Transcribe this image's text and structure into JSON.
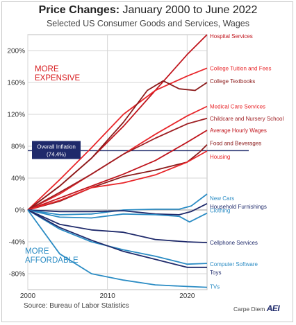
{
  "title_main": "Price Changes:",
  "title_rest": "January 2000 to June 2022",
  "subtitle": "Selected US Consumer Goods and Services, Wages",
  "source": "Source: Bureau of Labor Statistics",
  "brand_text": "Carpe Diem",
  "brand_logo": "AEI",
  "chart_data": {
    "type": "line",
    "title": "Price Changes: January 2000 to June 2022",
    "subtitle": "Selected US Consumer Goods and Services, Wages",
    "xlabel": "",
    "ylabel": "",
    "xlim": [
      2000,
      2022.5
    ],
    "ylim": [
      -100,
      220
    ],
    "yticks": [
      -80,
      -40,
      0,
      40,
      80,
      120,
      160,
      200
    ],
    "ytick_labels": [
      "-80%",
      "-40%",
      "0%",
      "40%",
      "80%",
      "120%",
      "160%",
      "200%"
    ],
    "xticks": [
      2000,
      2010,
      2020
    ],
    "xtick_labels": [
      "2000",
      "2010",
      "2020"
    ],
    "grid": true,
    "overall_inflation": {
      "value": 74.4,
      "label": "Overall Inflation",
      "sublabel": "(74.4%)"
    },
    "region_labels": [
      {
        "lines": [
          "MORE",
          "EXPENSIVE"
        ],
        "color": "#d7191c"
      },
      {
        "lines": [
          "MORE",
          "AFFORDABLE"
        ],
        "color": "#2b8cc4"
      }
    ],
    "series": [
      {
        "name": "Hospital Services",
        "color": "#c0141c",
        "x": [
          2000,
          2004,
          2008,
          2012,
          2016,
          2020,
          2022.5
        ],
        "values": [
          0,
          30,
          65,
          105,
          150,
          195,
          220
        ]
      },
      {
        "name": "College Tuition and Fees",
        "color": "#e8262a",
        "x": [
          2000,
          2004,
          2008,
          2012,
          2016,
          2020,
          2022.5
        ],
        "values": [
          0,
          38,
          78,
          120,
          150,
          168,
          178
        ]
      },
      {
        "name": "College Textbooks",
        "color": "#8b1a1a",
        "x": [
          2000,
          2004,
          2008,
          2012,
          2015,
          2017,
          2019,
          2021,
          2022.5
        ],
        "values": [
          0,
          30,
          65,
          110,
          150,
          162,
          152,
          150,
          160
        ]
      },
      {
        "name": "Medical Care Services",
        "color": "#e8262a",
        "x": [
          2000,
          2004,
          2008,
          2012,
          2016,
          2020,
          2022.5
        ],
        "values": [
          0,
          20,
          45,
          70,
          95,
          118,
          130
        ]
      },
      {
        "name": "Childcare and Nursery School",
        "color": "#9e1e22",
        "x": [
          2000,
          2004,
          2008,
          2012,
          2016,
          2020,
          2022.5
        ],
        "values": [
          0,
          22,
          45,
          70,
          90,
          108,
          115
        ]
      },
      {
        "name": "Average Hourly Wages",
        "color": "#c0141c",
        "x": [
          2000,
          2004,
          2008,
          2012,
          2016,
          2020,
          2022.5
        ],
        "values": [
          0,
          15,
          30,
          45,
          62,
          85,
          100
        ]
      },
      {
        "name": "Food and Beverages",
        "color": "#8b1a1a",
        "x": [
          2000,
          2004,
          2008,
          2012,
          2016,
          2020,
          2021.5,
          2022.5
        ],
        "values": [
          0,
          11,
          28,
          42,
          50,
          60,
          72,
          82
        ]
      },
      {
        "name": "Housing",
        "color": "#e8262a",
        "x": [
          2000,
          2004,
          2008,
          2012,
          2016,
          2020,
          2022.5
        ],
        "values": [
          0,
          12,
          28,
          34,
          44,
          60,
          74
        ]
      },
      {
        "name": "New Cars",
        "color": "#2b8cc4",
        "x": [
          2000,
          2004,
          2008,
          2012,
          2016,
          2019,
          2020.5,
          2022.5
        ],
        "values": [
          0,
          -6,
          -5,
          0,
          1,
          1,
          5,
          20
        ]
      },
      {
        "name": "Household Furnishings",
        "color": "#1f2a6b",
        "x": [
          2000,
          2004,
          2008,
          2012,
          2016,
          2019,
          2020.5,
          2022.5
        ],
        "values": [
          0,
          -2,
          -2,
          -1,
          -5,
          -6,
          -2,
          8
        ]
      },
      {
        "name": "Clothing",
        "color": "#2b8cc4",
        "x": [
          2000,
          2004,
          2008,
          2012,
          2016,
          2019,
          2020.3,
          2022.5
        ],
        "values": [
          0,
          -9,
          -10,
          -5,
          -6,
          -8,
          -15,
          -4
        ]
      },
      {
        "name": "Cellphone Services",
        "color": "#1f2a6b",
        "x": [
          2000,
          2004,
          2008,
          2012,
          2016,
          2020,
          2022.5
        ],
        "values": [
          0,
          -18,
          -25,
          -28,
          -37,
          -40,
          -41
        ]
      },
      {
        "name": "Computer Software",
        "color": "#2b8cc4",
        "x": [
          2000,
          2004,
          2008,
          2012,
          2016,
          2020,
          2022.5
        ],
        "values": [
          0,
          -24,
          -40,
          -50,
          -58,
          -68,
          -67
        ]
      },
      {
        "name": "Toys",
        "color": "#1f2a6b",
        "x": [
          2000,
          2004,
          2008,
          2012,
          2016,
          2020,
          2022.5
        ],
        "values": [
          0,
          -22,
          -38,
          -52,
          -62,
          -72,
          -72
        ]
      },
      {
        "name": "TVs",
        "color": "#2b8cc4",
        "x": [
          2000,
          2004,
          2008,
          2012,
          2016,
          2020,
          2022.5
        ],
        "values": [
          0,
          -55,
          -80,
          -88,
          -94,
          -96,
          -97
        ]
      }
    ]
  }
}
